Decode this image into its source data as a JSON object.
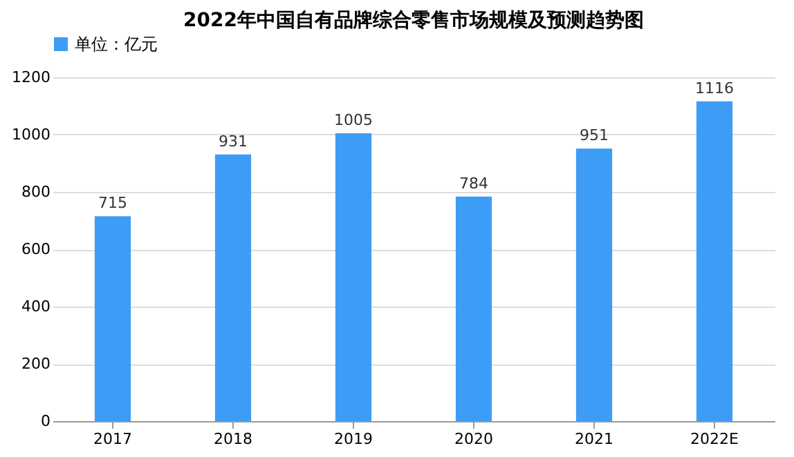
{
  "chart_data": {
    "type": "bar",
    "title": "2022年中国自有品牌综合零售市场规模及预测趋势图",
    "categories": [
      "2017",
      "2018",
      "2019",
      "2020",
      "2021",
      "2022E"
    ],
    "series": [
      {
        "name": "单位：亿元",
        "color": "#3d9cf5",
        "values": [
          715,
          931,
          1005,
          784,
          951,
          1116
        ]
      }
    ],
    "ylim": [
      0,
      1200
    ],
    "yticks": [
      0,
      200,
      400,
      600,
      800,
      1000,
      1200
    ],
    "grid": "y",
    "legend": "top",
    "data_labels": true
  }
}
